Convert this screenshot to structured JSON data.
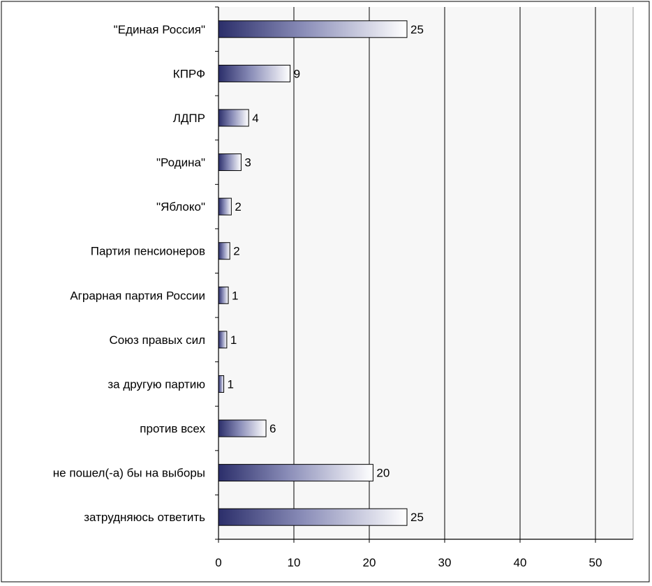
{
  "chart_data": {
    "type": "bar",
    "orientation": "horizontal",
    "categories": [
      "\"Единая Россия\"",
      "КПРФ",
      "ЛДПР",
      "\"Родина\"",
      "\"Яблоко\"",
      "Партия пенсионеров",
      "Аграрная партия России",
      "Союз правых сил",
      "за другую партию",
      "против всех",
      "не пошел(-а) бы на выборы",
      "затрудняюсь ответить"
    ],
    "values": [
      25,
      9.5,
      4,
      3,
      1.7,
      1.5,
      1.3,
      1.1,
      0.7,
      6.3,
      20.5,
      25
    ],
    "value_labels": [
      "25",
      "9",
      "4",
      "3",
      "2",
      "2",
      "1",
      "1",
      "1",
      "6",
      "20",
      "25"
    ],
    "xlim": [
      0,
      55
    ],
    "xticks": [
      0,
      10,
      20,
      30,
      40,
      50
    ],
    "title": "",
    "xlabel": "",
    "ylabel": "",
    "grid": "vertical",
    "legend": "none",
    "colors": {
      "bar_dark": "#2b2e6a",
      "bar_mid": "#8a8db8",
      "bar_light": "#ffffff",
      "plot_bg": "#f7f7f7",
      "grid": "#000000",
      "frame": "#000000"
    }
  }
}
